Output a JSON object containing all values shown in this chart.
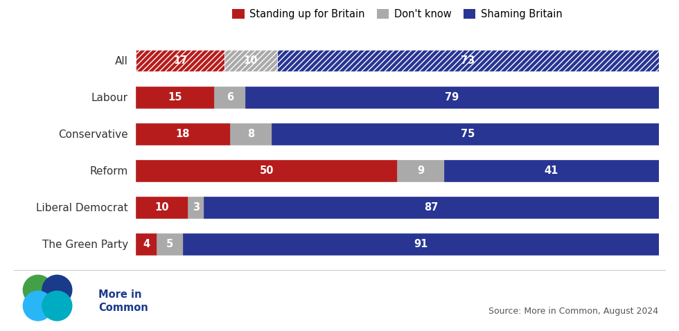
{
  "categories": [
    "All",
    "Labour",
    "Conservative",
    "Reform",
    "Liberal Democrat",
    "The Green Party"
  ],
  "standing_up": [
    17,
    15,
    18,
    50,
    10,
    4
  ],
  "dont_know": [
    10,
    6,
    8,
    9,
    3,
    5
  ],
  "shaming": [
    73,
    79,
    75,
    41,
    87,
    91
  ],
  "color_standing": "#b71c1c",
  "color_dont_know": "#aaaaaa",
  "color_shaming": "#283593",
  "legend_labels": [
    "Standing up for Britain",
    "Don't know",
    "Shaming Britain"
  ],
  "source_text": "Source: More in Common, August 2024",
  "logo_text": "More in\nCommon",
  "background_color": "#ffffff",
  "bar_height": 0.58,
  "font_size_labels": 11,
  "font_size_values": 10.5,
  "logo_colors": [
    "#43a047",
    "#1565c0",
    "#29b6f6",
    "#26c6da"
  ]
}
